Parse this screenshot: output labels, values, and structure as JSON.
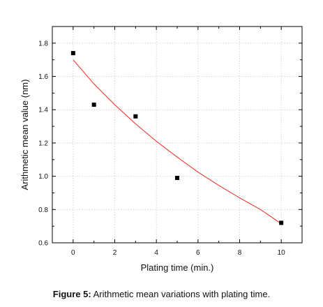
{
  "chart_data": {
    "type": "scatter",
    "title": "",
    "xlabel": "Plating time (min.)",
    "ylabel": "Arithmetic mean value (nm)",
    "xlim": [
      -1,
      11
    ],
    "ylim": [
      0.6,
      1.9
    ],
    "xticks": [
      0,
      2,
      4,
      6,
      8,
      10
    ],
    "xtick_labels": [
      "0",
      "2",
      "4",
      "6",
      "8",
      "10"
    ],
    "yticks": [
      0.6,
      0.8,
      1.0,
      1.2,
      1.4,
      1.6,
      1.8
    ],
    "ytick_labels": [
      "0.6",
      "0.8",
      "1.0",
      "1.2",
      "1.4",
      "1.6",
      "1.8"
    ],
    "grid": true,
    "series": [
      {
        "type": "scatter",
        "marker": "square",
        "color": "#000000",
        "x": [
          0,
          1,
          3,
          5,
          10
        ],
        "y": [
          1.74,
          1.43,
          1.36,
          0.99,
          0.72
        ]
      },
      {
        "type": "line",
        "kind": "fit",
        "color": "#e8281e",
        "x": [
          0,
          1,
          2,
          3,
          4,
          5,
          6,
          7,
          8,
          9,
          10
        ],
        "y": [
          1.7,
          1.555,
          1.43,
          1.315,
          1.21,
          1.115,
          1.025,
          0.945,
          0.87,
          0.8,
          0.715
        ]
      }
    ]
  },
  "caption": {
    "label": "Figure 5:",
    "text": " Arithmetic mean variations with plating time."
  }
}
